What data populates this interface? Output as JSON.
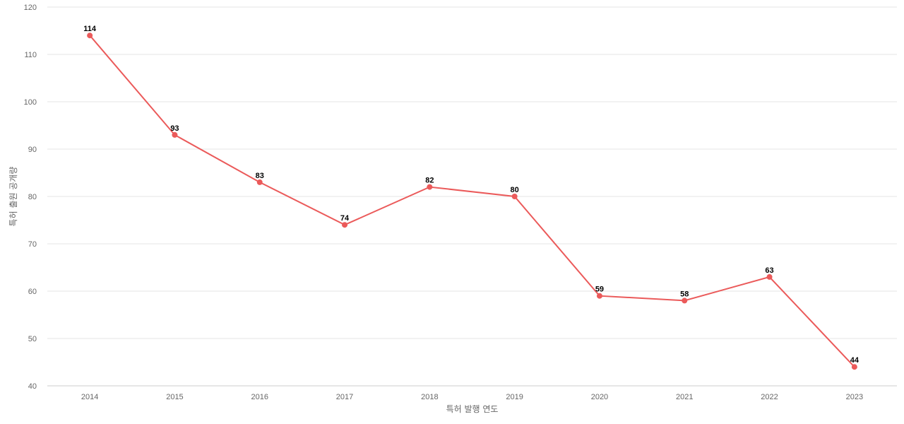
{
  "chart_data": {
    "type": "line",
    "title": "",
    "xlabel": "특허 발행 연도",
    "ylabel": "특허 출원 공개량",
    "categories": [
      "2014",
      "2015",
      "2016",
      "2017",
      "2018",
      "2019",
      "2020",
      "2021",
      "2022",
      "2023"
    ],
    "series": [
      {
        "values": [
          114,
          93,
          83,
          74,
          82,
          80,
          59,
          58,
          63,
          44
        ]
      }
    ],
    "ylim": [
      40,
      120
    ],
    "yticks": [
      40,
      50,
      60,
      70,
      80,
      90,
      100,
      110,
      120
    ],
    "grid": true,
    "legend": "none",
    "line_color": "#eb5a5a"
  }
}
